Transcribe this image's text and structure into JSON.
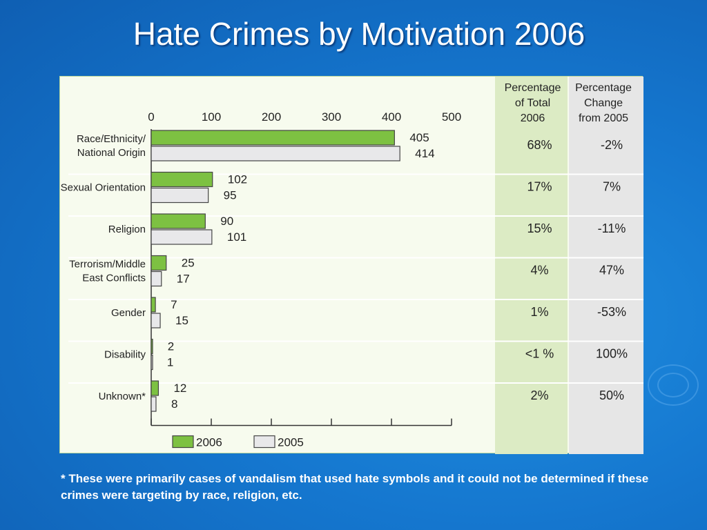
{
  "slide": {
    "title": "Hate Crimes by Motivation 2006",
    "footnote": "* These were primarily cases of vandalism that used hate symbols and it could not be determined if these crimes were targeting by race, religion, etc."
  },
  "chart_data": {
    "type": "bar",
    "orientation": "horizontal",
    "categories": [
      [
        "Race/Ethnicity/",
        "National Origin"
      ],
      [
        "Sexual Orientation"
      ],
      [
        "Religion"
      ],
      [
        "Terrorism/Middle",
        "East Conflicts"
      ],
      [
        "Gender"
      ],
      [
        "Disability"
      ],
      [
        "Unknown*"
      ]
    ],
    "series": [
      {
        "name": "2006",
        "color": "#7dc142",
        "values": [
          405,
          102,
          90,
          25,
          7,
          2,
          12
        ]
      },
      {
        "name": "2005",
        "color": "#e8e8ea",
        "values": [
          414,
          95,
          101,
          17,
          15,
          1,
          8
        ]
      }
    ],
    "x_ticks": [
      0,
      100,
      200,
      300,
      400,
      500
    ],
    "xlim": [
      0,
      500
    ],
    "legend_position": "bottom-left",
    "table_columns": [
      {
        "header": [
          "Percentage",
          "of Total",
          "2006"
        ],
        "background": "#dcebc4",
        "values": [
          "68%",
          "17%",
          "15%",
          "4%",
          "1%",
          "<1 %",
          "2%"
        ]
      },
      {
        "header": [
          "Percentage",
          "Change",
          "from 2005"
        ],
        "background": "#e6e6e6",
        "values": [
          "-2%",
          "7%",
          "-11%",
          "47%",
          "-53%",
          "100%",
          "50%"
        ]
      }
    ]
  }
}
